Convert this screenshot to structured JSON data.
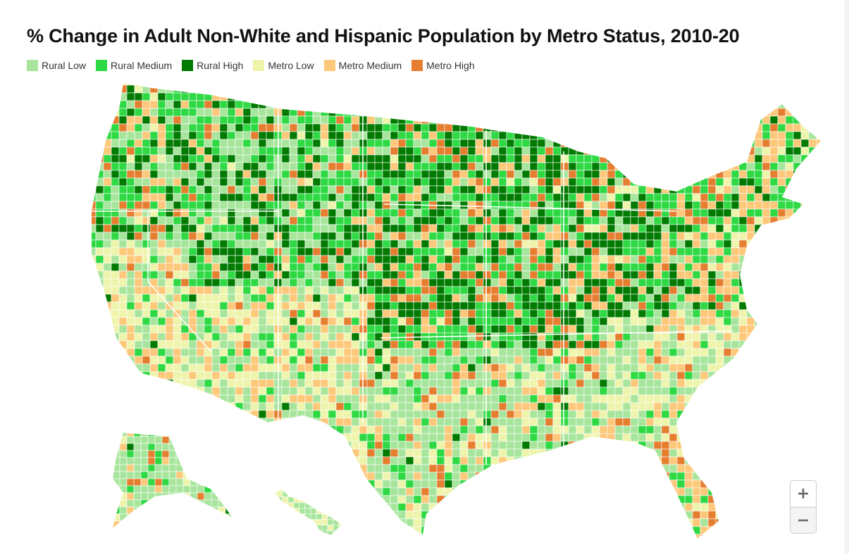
{
  "title": "% Change in Adult Non-White and Hispanic Population by Metro Status, 2010-20",
  "legend": [
    {
      "label": "Rural Low",
      "color": "#a8e59c"
    },
    {
      "label": "Rural Medium",
      "color": "#2ed943"
    },
    {
      "label": "Rural High",
      "color": "#007a00"
    },
    {
      "label": "Metro Low",
      "color": "#eef4ab"
    },
    {
      "label": "Metro Medium",
      "color": "#fec87a"
    },
    {
      "label": "Metro High",
      "color": "#e67e30"
    }
  ],
  "no_data_color": "#d9d9d9",
  "border_color": "#ffffff",
  "zoom_controls": {
    "zoom_in": "+",
    "zoom_out": "−"
  }
}
